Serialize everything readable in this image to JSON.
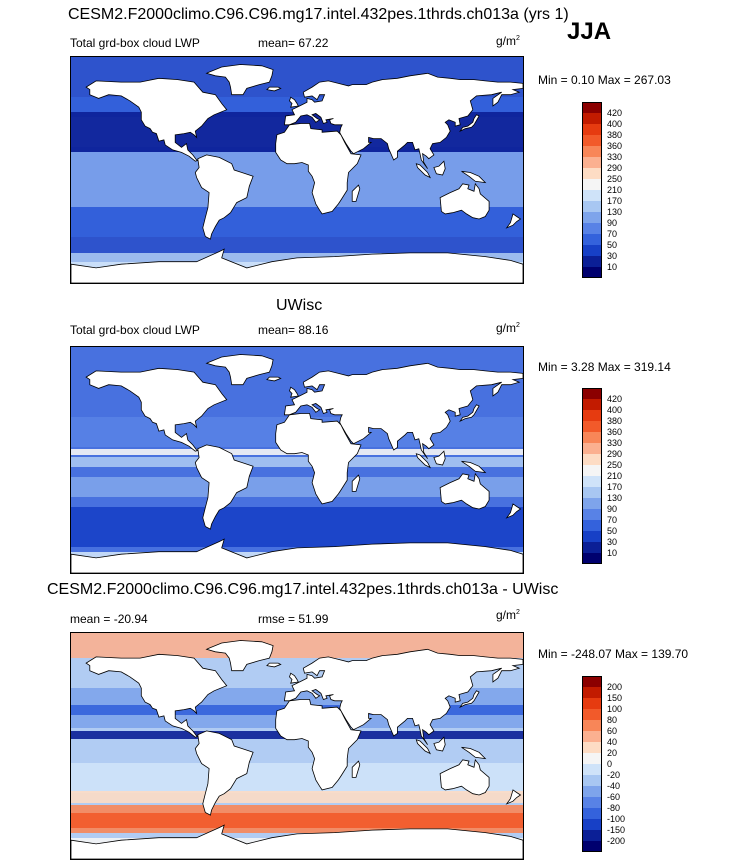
{
  "header": {
    "main_title": "CESM2.F2000climo.C96.C96.mg17.intel.432pes.1thrds.ch013a (yrs 1)",
    "season": "JJA"
  },
  "panels": [
    {
      "id": "test",
      "title": "",
      "variable": "Total grd-box cloud LWP",
      "stat_text": "mean=  67.22",
      "units": "g/m",
      "units_exp": "2",
      "minmax": "Min =   0.10 Max = 267.03"
    },
    {
      "id": "obs",
      "title": "UWisc",
      "variable": "Total grd-box cloud LWP",
      "stat_text": "mean=  88.16",
      "units": "g/m",
      "units_exp": "2",
      "minmax": "Min =   3.28 Max = 319.14"
    },
    {
      "id": "diff",
      "title": "CESM2.F2000climo.C96.C96.mg17.intel.432pes.1thrds.ch013a - UWisc",
      "variable": "mean = -20.94",
      "stat_text": "rmse =  51.99",
      "units": "g/m",
      "units_exp": "2",
      "minmax": "Min = -248.07 Max = 139.70"
    }
  ],
  "chart_data": [
    {
      "type": "heatmap",
      "title": "Total grd-box cloud LWP",
      "mean": 67.22,
      "min": 0.1,
      "max": 267.03,
      "units": "g/m2",
      "colorbar": {
        "levels": [
          "420",
          "400",
          "380",
          "360",
          "330",
          "290",
          "250",
          "210",
          "170",
          "130",
          "90",
          "70",
          "50",
          "30",
          "10"
        ],
        "colors": [
          "#8b0000",
          "#c21b00",
          "#e63b10",
          "#f25a2a",
          "#f88658",
          "#fbb090",
          "#fddcc4",
          "#f5f5f5",
          "#cfe3f9",
          "#a8c7f2",
          "#7ea4eb",
          "#5882e6",
          "#3462dc",
          "#1740c6",
          "#0b1f96",
          "#00006e"
        ]
      }
    },
    {
      "type": "heatmap",
      "title": "UWisc",
      "mean": 88.16,
      "min": 3.28,
      "max": 319.14,
      "units": "g/m2",
      "colorbar": {
        "levels": [
          "420",
          "400",
          "380",
          "360",
          "330",
          "290",
          "250",
          "210",
          "170",
          "130",
          "90",
          "70",
          "50",
          "30",
          "10"
        ],
        "colors": [
          "#8b0000",
          "#c21b00",
          "#e63b10",
          "#f25a2a",
          "#f88658",
          "#fbb090",
          "#fddcc4",
          "#f5f5f5",
          "#cfe3f9",
          "#a8c7f2",
          "#7ea4eb",
          "#5882e6",
          "#3462dc",
          "#1740c6",
          "#0b1f96",
          "#00006e"
        ]
      }
    },
    {
      "type": "heatmap",
      "title": "CESM2.F2000climo.C96.C96.mg17.intel.432pes.1thrds.ch013a - UWisc",
      "mean": -20.94,
      "rmse": 51.99,
      "min": -248.07,
      "max": 139.7,
      "units": "g/m2",
      "colorbar": {
        "levels": [
          "200",
          "150",
          "100",
          "80",
          "60",
          "40",
          "20",
          "0",
          "-20",
          "-40",
          "-60",
          "-80",
          "-100",
          "-150",
          "-200"
        ],
        "colors": [
          "#8b0000",
          "#c21b00",
          "#e63b10",
          "#f25a2a",
          "#f88658",
          "#fbb090",
          "#fddcc4",
          "#f5f5f5",
          "#cfe3f9",
          "#a8c7f2",
          "#7ea4eb",
          "#5882e6",
          "#3462dc",
          "#1740c6",
          "#0b1f96",
          "#00006e"
        ]
      }
    }
  ]
}
